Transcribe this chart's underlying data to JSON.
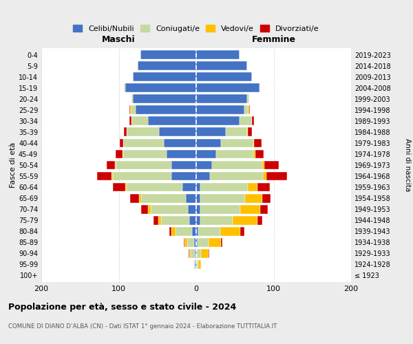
{
  "age_groups": [
    "100+",
    "95-99",
    "90-94",
    "85-89",
    "80-84",
    "75-79",
    "70-74",
    "65-69",
    "60-64",
    "55-59",
    "50-54",
    "45-49",
    "40-44",
    "35-39",
    "30-34",
    "25-29",
    "20-24",
    "15-19",
    "10-14",
    "5-9",
    "0-4"
  ],
  "birth_years": [
    "≤ 1923",
    "1924-1928",
    "1929-1933",
    "1934-1938",
    "1939-1943",
    "1944-1948",
    "1949-1953",
    "1954-1958",
    "1959-1963",
    "1964-1968",
    "1969-1973",
    "1974-1978",
    "1979-1983",
    "1984-1988",
    "1989-1993",
    "1994-1998",
    "1999-2003",
    "2004-2008",
    "2009-2013",
    "2014-2018",
    "2019-2023"
  ],
  "colors": {
    "celibi": "#4472c4",
    "coniugati": "#c5d9a0",
    "vedovi": "#ffc000",
    "divorziati": "#cc0000"
  },
  "maschi": {
    "celibi": [
      0,
      2,
      2,
      3,
      5,
      9,
      11,
      13,
      18,
      32,
      32,
      38,
      42,
      48,
      62,
      78,
      82,
      92,
      82,
      76,
      72
    ],
    "coniugati": [
      0,
      1,
      5,
      9,
      22,
      36,
      48,
      58,
      72,
      76,
      72,
      56,
      52,
      42,
      22,
      6,
      2,
      1,
      0,
      0,
      0
    ],
    "vedovi": [
      0,
      0,
      2,
      3,
      5,
      4,
      3,
      3,
      2,
      1,
      1,
      1,
      0,
      0,
      0,
      1,
      0,
      0,
      0,
      0,
      0
    ],
    "divorziati": [
      0,
      0,
      1,
      1,
      3,
      6,
      9,
      11,
      16,
      19,
      11,
      9,
      5,
      3,
      2,
      1,
      0,
      0,
      0,
      0,
      0
    ]
  },
  "femmine": {
    "celibi": [
      0,
      1,
      1,
      2,
      3,
      5,
      5,
      5,
      5,
      18,
      20,
      26,
      32,
      38,
      56,
      62,
      66,
      82,
      72,
      66,
      56
    ],
    "coniugati": [
      0,
      2,
      5,
      14,
      28,
      42,
      52,
      58,
      62,
      68,
      65,
      48,
      42,
      28,
      16,
      5,
      2,
      1,
      0,
      0,
      0
    ],
    "vedovi": [
      0,
      3,
      10,
      16,
      26,
      32,
      26,
      22,
      12,
      5,
      3,
      2,
      1,
      1,
      0,
      1,
      0,
      0,
      0,
      0,
      0
    ],
    "divorziati": [
      0,
      0,
      1,
      2,
      5,
      6,
      9,
      11,
      16,
      26,
      19,
      11,
      9,
      5,
      3,
      1,
      0,
      0,
      0,
      0,
      0
    ]
  },
  "title": "Popolazione per età, sesso e stato civile - 2024",
  "subtitle": "COMUNE DI DIANO D’ALBA (CN) - Dati ISTAT 1° gennaio 2024 - Elaborazione TUTTITALIA.IT",
  "xlabel_maschi": "Maschi",
  "xlabel_femmine": "Femmine",
  "ylabel": "Fasce di età",
  "ylabel2": "Anni di nascita",
  "xlim": 200,
  "background_color": "#ececec",
  "plot_bg": "#ffffff",
  "legend_labels": [
    "Celibi/Nubili",
    "Coniugati/e",
    "Vedovi/e",
    "Divorziati/e"
  ]
}
